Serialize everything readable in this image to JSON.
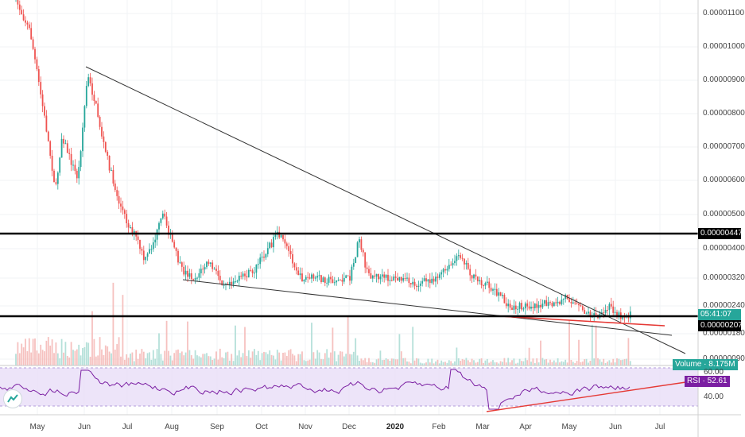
{
  "price_axis": {
    "ticks": [
      "0.00001100",
      "0.00001000",
      "0.00000900",
      "0.00000800",
      "0.00000700",
      "0.00000600",
      "0.00000500",
      "0.00000400",
      "0.00000320",
      "0.00000240",
      "0.00000180",
      "0.00000090"
    ]
  },
  "tags": {
    "resistance": "0.00000447",
    "countdown": "05:41:07",
    "support": "0.00000207",
    "volume_label": "Volume",
    "volume_value": "8.175M",
    "rsi_label": "RSI",
    "rsi_value": "52.61"
  },
  "rsi_axis": {
    "upper": "60.00",
    "lower": "40.00"
  },
  "time_axis": {
    "months": [
      "May",
      "Jun",
      "Jul",
      "Aug",
      "Sep",
      "Oct",
      "Nov",
      "Dec",
      "2020",
      "Feb",
      "Mar",
      "Apr",
      "May",
      "Jun",
      "Jul"
    ],
    "bold_index": 8
  },
  "colors": {
    "up": "#26a69a",
    "down": "#ef5350",
    "rsi_line": "#7b1fa2",
    "rsi_band": "#e9ddf7",
    "trendline_red": "#e53935",
    "level": "#000000",
    "countdown_bg": "#26a69a",
    "rsi_tag_bg": "#7b1fa2",
    "volume_tag_bg": "#26a69a"
  },
  "icons": {
    "logo": "tradingview-logo-icon"
  }
}
